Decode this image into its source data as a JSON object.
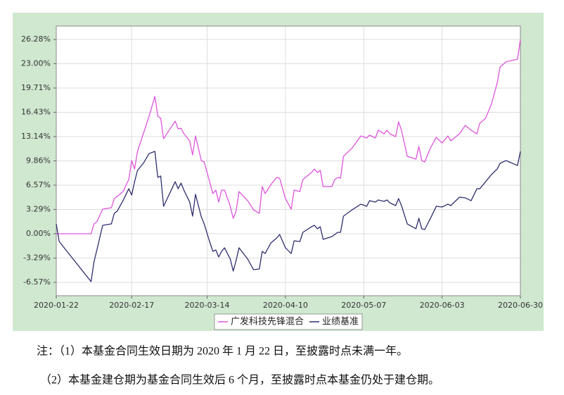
{
  "chart_data": {
    "type": "line",
    "x": [
      "2020-01-22",
      "2020-01-23",
      "2020-02-03",
      "2020-02-04",
      "2020-02-05",
      "2020-02-07",
      "2020-02-10",
      "2020-02-11",
      "2020-02-12",
      "2020-02-14",
      "2020-02-16",
      "2020-02-17",
      "2020-02-18",
      "2020-02-19",
      "2020-02-21",
      "2020-02-23",
      "2020-02-25",
      "2020-02-26",
      "2020-02-27",
      "2020-02-28",
      "2020-03-03",
      "2020-03-04",
      "2020-03-05",
      "2020-03-06",
      "2020-03-08",
      "2020-03-09",
      "2020-03-10",
      "2020-03-12",
      "2020-03-13",
      "2020-03-15",
      "2020-03-16",
      "2020-03-17",
      "2020-03-18",
      "2020-03-19",
      "2020-03-20",
      "2020-03-22",
      "2020-03-23",
      "2020-03-24",
      "2020-03-25",
      "2020-03-28",
      "2020-03-30",
      "2020-04-01",
      "2020-04-02",
      "2020-04-03",
      "2020-04-05",
      "2020-04-07",
      "2020-04-08",
      "2020-04-10",
      "2020-04-12",
      "2020-04-13",
      "2020-04-15",
      "2020-04-16",
      "2020-04-19",
      "2020-04-20",
      "2020-04-21",
      "2020-04-22",
      "2020-04-23",
      "2020-04-26",
      "2020-04-27",
      "2020-04-28",
      "2020-04-29",
      "2020-04-30",
      "2020-05-03",
      "2020-05-06",
      "2020-05-08",
      "2020-05-09",
      "2020-05-11",
      "2020-05-12",
      "2020-05-14",
      "2020-05-15",
      "2020-05-16",
      "2020-05-18",
      "2020-05-19",
      "2020-05-20",
      "2020-05-22",
      "2020-05-25",
      "2020-05-26",
      "2020-05-27",
      "2020-05-28",
      "2020-05-30",
      "2020-06-01",
      "2020-06-03",
      "2020-06-05",
      "2020-06-06",
      "2020-06-09",
      "2020-06-11",
      "2020-06-13",
      "2020-06-15",
      "2020-06-16",
      "2020-06-18",
      "2020-06-20",
      "2020-06-22",
      "2020-06-23",
      "2020-06-25",
      "2020-06-29",
      "2020-06-30"
    ],
    "series": [
      {
        "name": "广发科技先锋混合",
        "color": "#dd55dd",
        "values": [
          0,
          0,
          0,
          1.33,
          1.62,
          3.33,
          3.52,
          4.76,
          5.05,
          5.71,
          7.33,
          9.9,
          8.76,
          11.14,
          13.52,
          15.9,
          18.57,
          15.9,
          15.62,
          12.86,
          15.23,
          14.19,
          14.28,
          13.52,
          12.57,
          10.66,
          13.23,
          9.9,
          9.71,
          6.85,
          5.43,
          5.9,
          4.28,
          5.9,
          5.9,
          3.71,
          2.09,
          3.05,
          5.71,
          4.47,
          3.24,
          2.76,
          6.38,
          5.43,
          6.66,
          7.62,
          7.52,
          4.76,
          3.33,
          5.9,
          5.71,
          7.33,
          8.28,
          8.76,
          8.28,
          8.57,
          6.38,
          6.38,
          7.33,
          7.62,
          7.52,
          10.47,
          11.61,
          13.23,
          12.95,
          13.33,
          12.95,
          14,
          13.52,
          14,
          13.52,
          13.14,
          15.14,
          14,
          10.47,
          10.09,
          11.8,
          9.9,
          9.71,
          11.61,
          13.04,
          12.28,
          13.23,
          12.57,
          13.52,
          14.66,
          14,
          13.52,
          14.95,
          15.62,
          17.52,
          20.37,
          22.56,
          23.23,
          23.61,
          26.28
        ]
      },
      {
        "name": "业绩基准",
        "color": "#2e2e6e",
        "values": [
          1.33,
          -1.05,
          -6.47,
          -3.81,
          -2.19,
          1.14,
          1.33,
          2.76,
          3.05,
          4.47,
          6.09,
          5.24,
          7.04,
          8.57,
          9.52,
          10.85,
          11.14,
          7.62,
          7.81,
          3.71,
          7.04,
          6.09,
          6.85,
          5.9,
          4.28,
          2.38,
          5.33,
          2.28,
          1.33,
          -1.24,
          -2.38,
          -2.19,
          -3.14,
          -2.38,
          -1.9,
          -3.43,
          -5.05,
          -3.62,
          -1.9,
          -3.43,
          -4.86,
          -4.76,
          -2.38,
          -2.67,
          -1.24,
          -0.57,
          -0.1,
          -1.9,
          -2.67,
          -0.95,
          -1.05,
          0.19,
          0.95,
          1.14,
          0.67,
          0.95,
          -0.76,
          -0.38,
          -0.1,
          0.19,
          0.19,
          2.38,
          3.24,
          4.0,
          3.71,
          4.47,
          4.28,
          4.57,
          4.38,
          4.57,
          4.19,
          3.81,
          4.76,
          3.81,
          1.33,
          0.67,
          2.09,
          0.67,
          0.57,
          2.09,
          3.71,
          3.62,
          4.0,
          3.81,
          4.95,
          4.86,
          4.47,
          6.09,
          6.09,
          7.04,
          8.0,
          8.76,
          9.52,
          9.9,
          9.23,
          11.14
        ]
      }
    ],
    "xlim": [
      "2020-01-22",
      "2020-06-30"
    ],
    "xticks": [
      "2020-01-22",
      "2020-02-17",
      "2020-03-14",
      "2020-04-10",
      "2020-05-07",
      "2020-06-03",
      "2020-06-30"
    ],
    "ylim": [
      -8.38,
      28.09
    ],
    "yticks": [
      {
        "value": 26.28,
        "label": "26.28%"
      },
      {
        "value": 23.0,
        "label": "23.00%"
      },
      {
        "value": 19.71,
        "label": "19.71%"
      },
      {
        "value": 16.43,
        "label": "16.43%"
      },
      {
        "value": 13.14,
        "label": "13.14%"
      },
      {
        "value": 9.86,
        "label": "9.86%"
      },
      {
        "value": 6.57,
        "label": "6.57%"
      },
      {
        "value": 3.29,
        "label": "3.29%"
      },
      {
        "value": 0,
        "label": "0.00%"
      },
      {
        "value": -3.29,
        "label": "-3.29%"
      },
      {
        "value": -6.57,
        "label": "-6.57%"
      }
    ],
    "grid": true,
    "legend": "bottom",
    "background": "#cfe8cf"
  },
  "notes": [
    "注：（1）本基金合同生效日期为 2020 年 1 月 22 日，至披露时点未满一年。",
    "（2）本基金建仓期为基金合同生效后 6 个月，至披露时点本基金仍处于建仓期。"
  ]
}
